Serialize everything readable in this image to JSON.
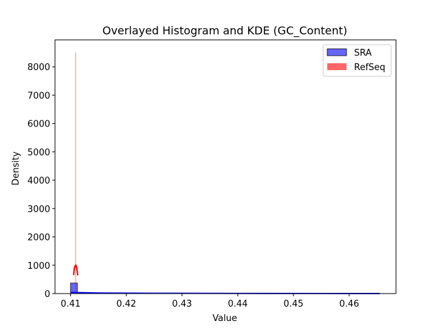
{
  "chart_data": {
    "type": "histogram",
    "title": "Overlayed Histogram and KDE (GC_Content)",
    "xlabel": "Value",
    "ylabel": "Density",
    "xlim": [
      0.4072,
      0.4684
    ],
    "ylim": [
      0,
      8950
    ],
    "x_ticks": [
      0.41,
      0.42,
      0.43,
      0.44,
      0.45,
      0.46
    ],
    "x_tick_labels": [
      "0.41",
      "0.42",
      "0.43",
      "0.44",
      "0.45",
      "0.46"
    ],
    "y_ticks": [
      0,
      1000,
      2000,
      3000,
      4000,
      5000,
      6000,
      7000,
      8000
    ],
    "y_tick_labels": [
      "0",
      "1000",
      "2000",
      "3000",
      "4000",
      "5000",
      "6000",
      "7000",
      "8000"
    ],
    "legend": {
      "position": "top-right",
      "entries": [
        {
          "name": "SRA",
          "color": "#0000ff",
          "alpha": 0.6,
          "edge": "#000000"
        },
        {
          "name": "RefSeq",
          "color": "#ff0000",
          "alpha": 0.6,
          "edge": "none"
        }
      ]
    },
    "series": [
      {
        "name": "SRA",
        "color": "#0000ff",
        "histogram": {
          "bins": [
            {
              "x0": 0.41,
              "x1": 0.4112,
              "density": 370
            },
            {
              "x0": 0.4112,
              "x1": 0.4124,
              "density": 40
            },
            {
              "x0": 0.4124,
              "x1": 0.42,
              "density": 15
            },
            {
              "x0": 0.42,
              "x1": 0.4655,
              "density": 4
            }
          ]
        },
        "kde": [
          {
            "x": 0.41,
            "y": 40
          },
          {
            "x": 0.415,
            "y": 22
          },
          {
            "x": 0.425,
            "y": 12
          },
          {
            "x": 0.44,
            "y": 6
          },
          {
            "x": 0.455,
            "y": 3
          },
          {
            "x": 0.4655,
            "y": 1
          }
        ]
      },
      {
        "name": "RefSeq",
        "color": "#ff0000",
        "histogram": {
          "bins": [
            {
              "x0": 0.41085,
              "x1": 0.41095,
              "density": 8500
            }
          ]
        },
        "kde": [
          {
            "x": 0.41055,
            "y": 650
          },
          {
            "x": 0.41065,
            "y": 880
          },
          {
            "x": 0.4108,
            "y": 980
          },
          {
            "x": 0.41095,
            "y": 1000
          },
          {
            "x": 0.4111,
            "y": 920
          },
          {
            "x": 0.4112,
            "y": 780
          },
          {
            "x": 0.41128,
            "y": 640
          }
        ]
      }
    ]
  }
}
